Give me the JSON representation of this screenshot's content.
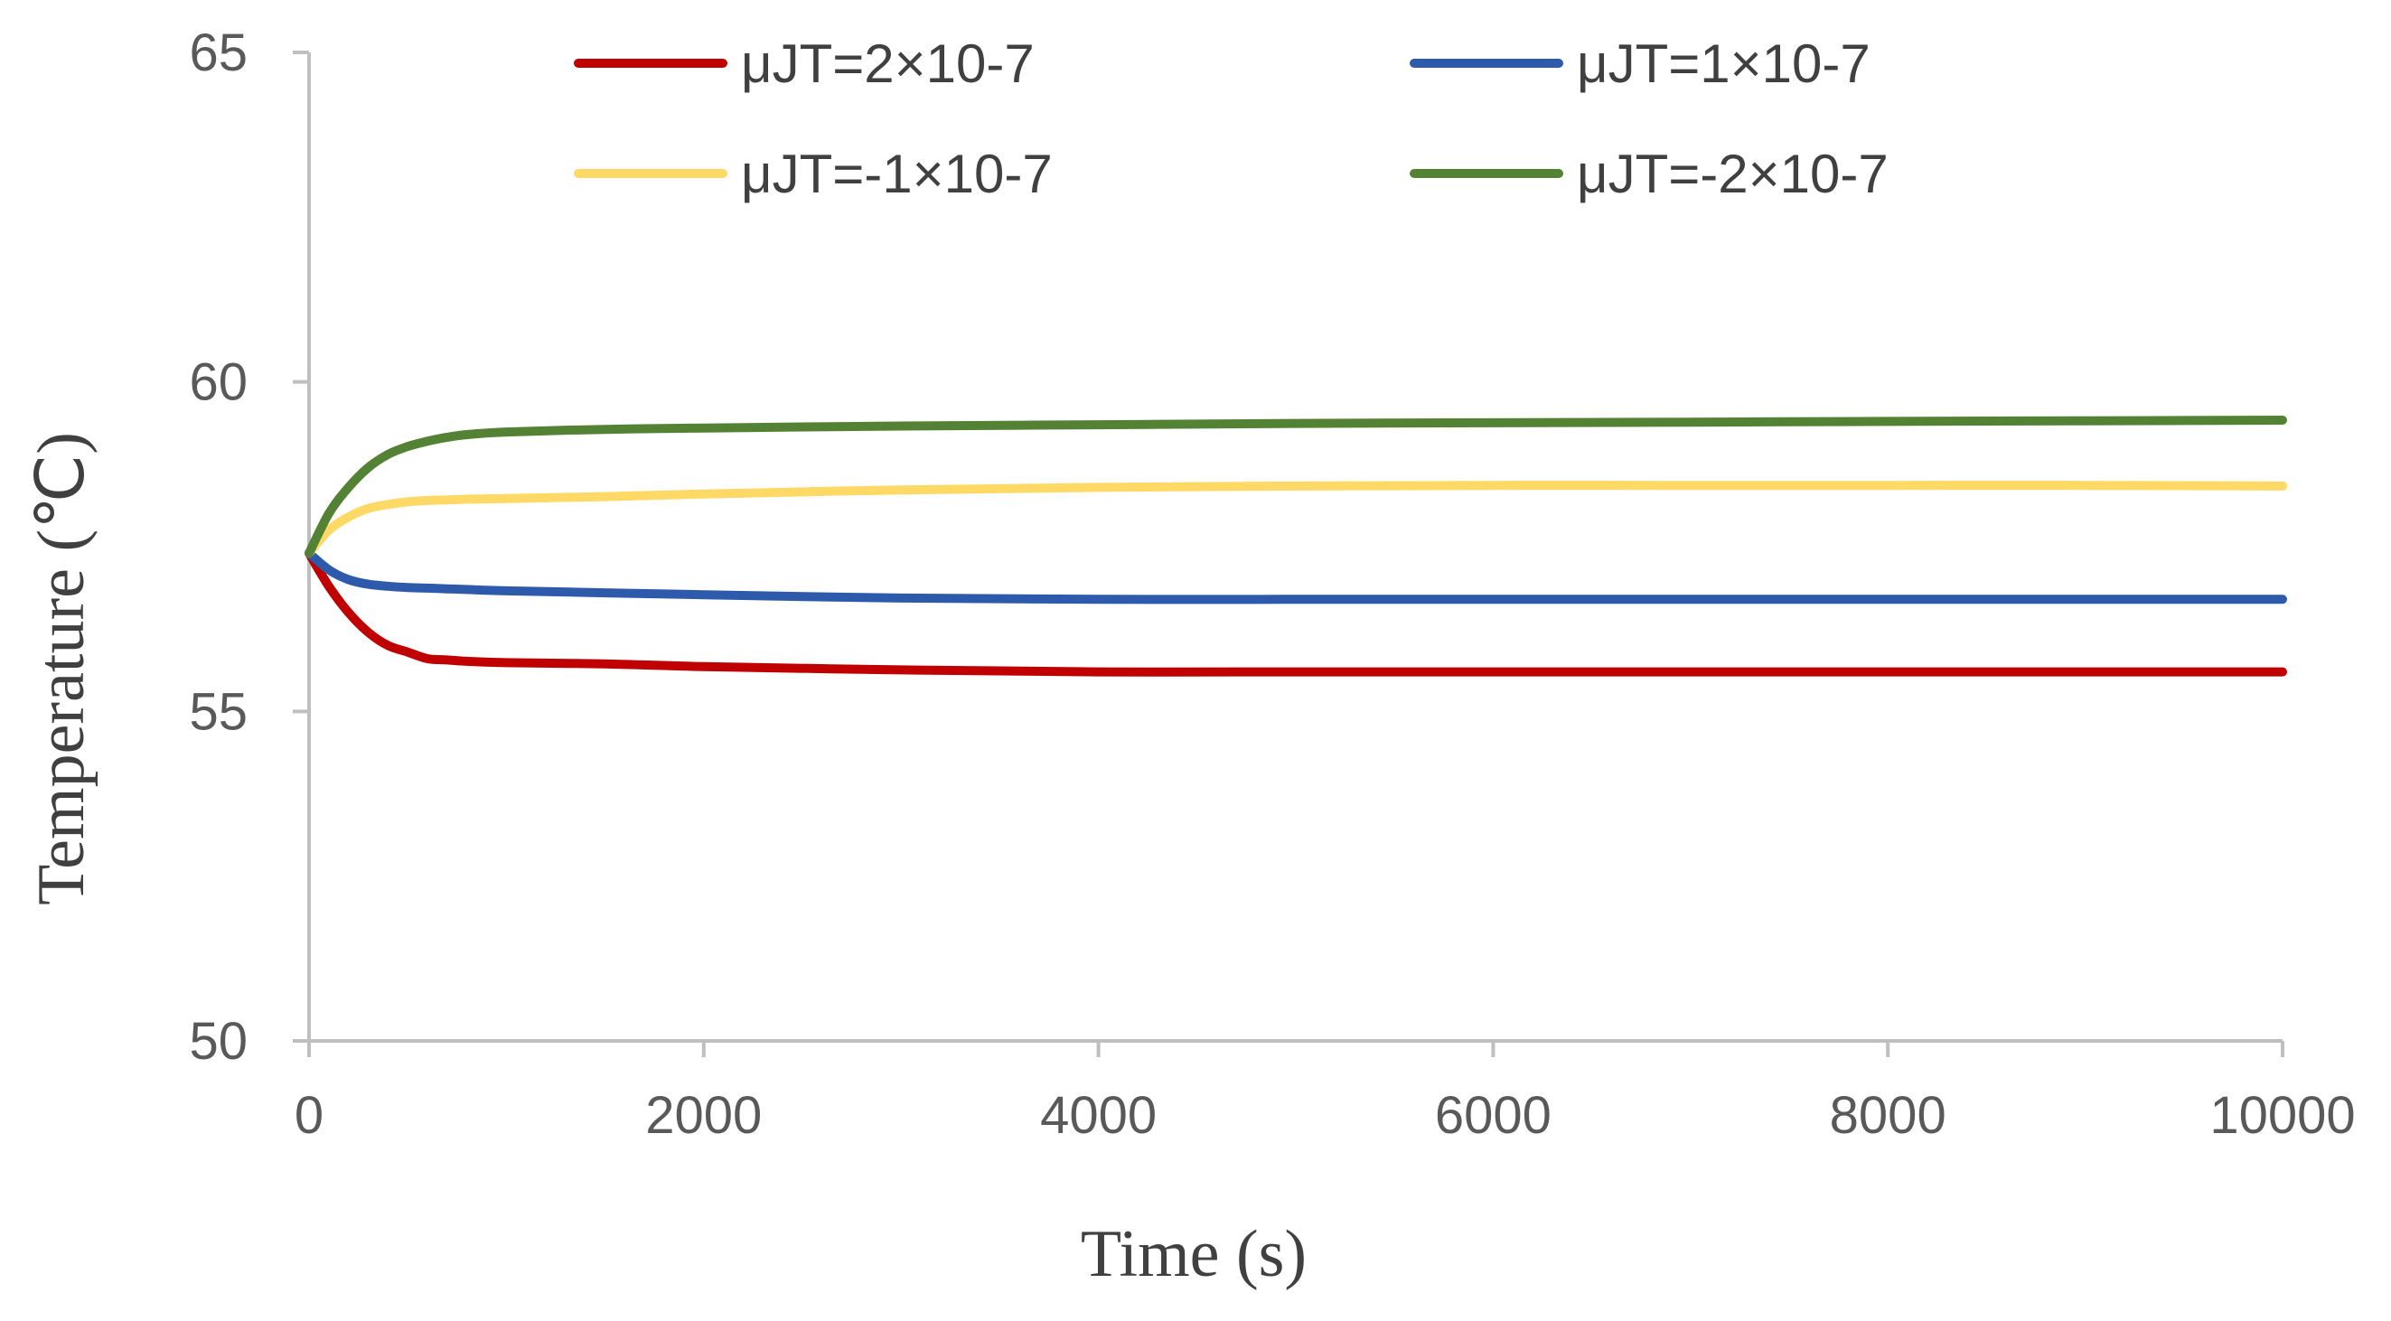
{
  "chart_data": {
    "type": "line",
    "title": "",
    "xlabel": "Time (s)",
    "ylabel": "Temperature (℃)",
    "xlim": [
      0,
      10000
    ],
    "ylim": [
      50,
      65
    ],
    "xticks": [
      "0",
      "2000",
      "4000",
      "6000",
      "8000",
      "10000"
    ],
    "yticks": [
      "50",
      "55",
      "60",
      "65"
    ],
    "grid": false,
    "legend_position": "top",
    "x": [
      0,
      100,
      200,
      300,
      400,
      500,
      600,
      700,
      800,
      1000,
      1500,
      2000,
      3000,
      4000,
      5000,
      6000,
      7000,
      8000,
      9000,
      10000
    ],
    "series": [
      {
        "name": "μJT=2×10-7",
        "color": "#c00000",
        "values": [
          57.4,
          56.9,
          56.5,
          56.2,
          56.0,
          55.9,
          55.8,
          55.78,
          55.76,
          55.74,
          55.72,
          55.68,
          55.63,
          55.6,
          55.6,
          55.6,
          55.6,
          55.6,
          55.6,
          55.6
        ]
      },
      {
        "name": "μJT=1×10-7",
        "color": "#2e5aac",
        "values": [
          57.4,
          57.15,
          57.0,
          56.93,
          56.9,
          56.88,
          56.87,
          56.86,
          56.85,
          56.83,
          56.8,
          56.77,
          56.72,
          56.7,
          56.7,
          56.7,
          56.7,
          56.7,
          56.7,
          56.7
        ]
      },
      {
        "name": "μJT=-1×10-7",
        "color": "#ffd966",
        "values": [
          57.4,
          57.75,
          57.95,
          58.08,
          58.14,
          58.18,
          58.2,
          58.21,
          58.22,
          58.23,
          58.26,
          58.3,
          58.36,
          58.4,
          58.42,
          58.43,
          58.43,
          58.43,
          58.43,
          58.42
        ]
      },
      {
        "name": "μJT=-2×10-7",
        "color": "#548235",
        "values": [
          57.4,
          58.0,
          58.4,
          58.7,
          58.9,
          59.02,
          59.1,
          59.16,
          59.2,
          59.24,
          59.28,
          59.3,
          59.33,
          59.35,
          59.37,
          59.38,
          59.39,
          59.4,
          59.41,
          59.42
        ]
      }
    ]
  }
}
